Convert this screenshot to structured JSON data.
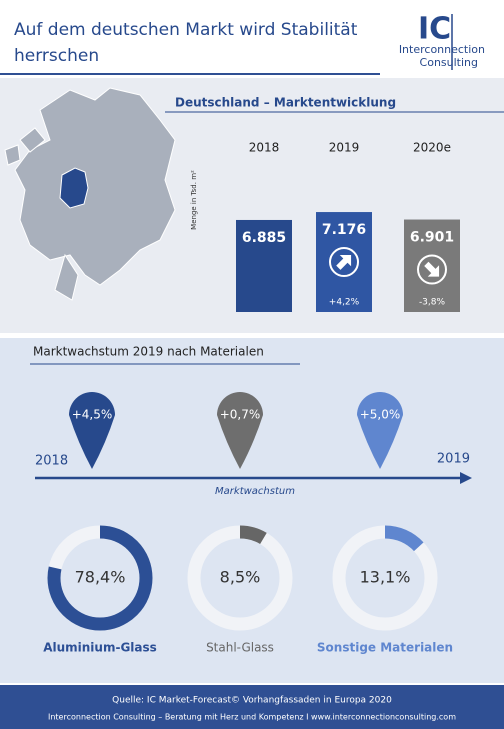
{
  "header": {
    "title_lines": [
      "Auf dem deutschen Markt wird Stabilität",
      "herrschen"
    ],
    "logo": {
      "mark": "IC",
      "line1": "Interconnection",
      "line2": "Consulting"
    }
  },
  "chart_data": {
    "type": "bar",
    "title": "Deutschland – Marktentwicklung",
    "y_label": "Menge in Tsd. m²",
    "categories": [
      "2018",
      "2019",
      "2020e"
    ],
    "values": [
      6885,
      7176,
      6901
    ],
    "value_labels": [
      "6.885",
      "7.176",
      "6.901"
    ],
    "changes": [
      null,
      "+4,2%",
      "-3,8%"
    ],
    "colors": [
      "#27498c",
      "#2f56a3",
      "#7a7a7a"
    ],
    "ylim": [
      3500,
      7200
    ]
  },
  "growth": {
    "title": "Marktwachstum 2019 nach Materialen",
    "start": "2018",
    "end": "2019",
    "axis_label": "Marktwachstum",
    "pins": [
      {
        "label": "+4,5%",
        "color": "#27498c"
      },
      {
        "label": "+0,7%",
        "color": "#6e6e6e"
      },
      {
        "label": "+5,0%",
        "color": "#5f86cf"
      }
    ]
  },
  "donuts": [
    {
      "name": "Aluminium-Glass",
      "value": 78.4,
      "label": "78,4%",
      "color": "#2c4f95"
    },
    {
      "name": "Stahl-Glass",
      "value": 8.5,
      "label": "8,5%",
      "color": "#666666"
    },
    {
      "name": "Sonstige Materialen",
      "value": 13.1,
      "label": "13,1%",
      "color": "#5f86cf"
    }
  ],
  "footer": {
    "source": "Quelle: IC Market-Forecast© Vorhangfassaden in Europa 2020",
    "line2": "Interconnection Consulting – Beratung mit Herz und Kompetenz  I  www.interconnectionconsulting.com"
  }
}
